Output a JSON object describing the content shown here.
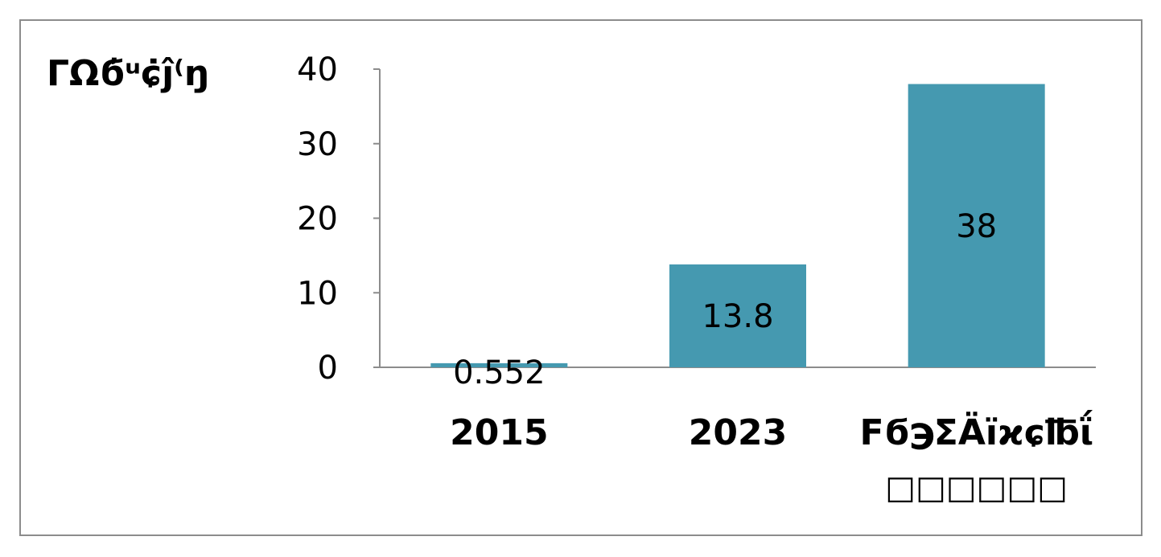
{
  "chart_data": {
    "type": "bar",
    "y_title": "ΓΩϭ҆ᵘ‎ɕ̇ĵ⁽ŋ",
    "categories": [
      "2015",
      "2023",
      "Fϭ℈ΣÄïϰɕ℔ΐ"
    ],
    "category_sublabels": [
      "",
      "",
      "□□□□□□"
    ],
    "values": [
      0.552,
      13.8,
      38
    ],
    "data_labels": [
      "0.552",
      "13.8",
      "38"
    ],
    "ylim": [
      0,
      40
    ],
    "yticks": [
      0,
      10,
      20,
      30,
      40
    ],
    "grid": false,
    "legend": "none",
    "bar_color": "#4599B0",
    "axis_color": "#8c8c8c"
  }
}
